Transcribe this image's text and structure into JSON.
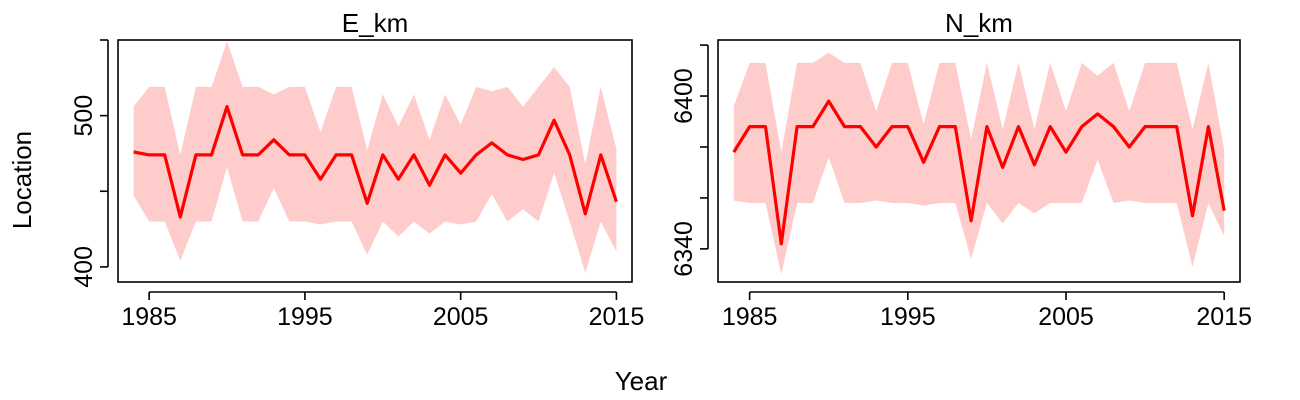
{
  "figure": {
    "xlabel": "Year",
    "ylabel": "Location"
  },
  "chart_data": [
    {
      "type": "line",
      "title": "E_km",
      "xlim": [
        1983,
        2016
      ],
      "ylim": [
        390,
        550
      ],
      "xticks": [
        1985,
        1995,
        2005,
        2015
      ],
      "xtick_labels": [
        "1985",
        "1995",
        "2005",
        "2015"
      ],
      "yticks": [
        400,
        450,
        500,
        550
      ],
      "ytick_labels": [
        "400",
        "",
        "500",
        ""
      ],
      "line_color": "#ff0000",
      "band_color": "#ffcccc",
      "x": [
        1984,
        1985,
        1986,
        1987,
        1988,
        1989,
        1990,
        1991,
        1992,
        1993,
        1994,
        1995,
        1996,
        1997,
        1998,
        1999,
        2000,
        2001,
        2002,
        2003,
        2004,
        2005,
        2006,
        2007,
        2008,
        2009,
        2010,
        2011,
        2012,
        2013,
        2014,
        2015
      ],
      "series": [
        {
          "values": [
            476,
            474,
            474,
            433,
            474,
            474,
            506,
            474,
            474,
            484,
            474,
            474,
            458,
            474,
            474,
            442,
            474,
            458,
            474,
            454,
            474,
            462,
            474,
            482,
            474,
            471,
            474,
            497,
            474,
            435,
            474,
            443
          ],
          "upper": [
            506,
            519,
            519,
            474,
            519,
            519,
            549,
            519,
            519,
            514,
            519,
            519,
            489,
            519,
            519,
            477,
            514,
            493,
            514,
            484,
            514,
            494,
            519,
            516,
            519,
            506,
            519,
            532,
            519,
            468,
            519,
            478
          ],
          "lower": [
            447,
            430,
            430,
            404,
            430,
            430,
            466,
            430,
            430,
            452,
            430,
            430,
            428,
            430,
            430,
            408,
            430,
            420,
            430,
            422,
            430,
            428,
            430,
            448,
            430,
            438,
            430,
            462,
            430,
            396,
            430,
            410
          ]
        }
      ]
    },
    {
      "type": "line",
      "title": "N_km",
      "xlim": [
        1983,
        2016
      ],
      "ylim": [
        6327,
        6422
      ],
      "xticks": [
        1985,
        1995,
        2005,
        2015
      ],
      "xtick_labels": [
        "1985",
        "1995",
        "2005",
        "2015"
      ],
      "yticks": [
        6340,
        6360,
        6380,
        6400,
        6420
      ],
      "ytick_labels": [
        "6340",
        "",
        "",
        "6400",
        ""
      ],
      "line_color": "#ff0000",
      "band_color": "#ffcccc",
      "x": [
        1984,
        1985,
        1986,
        1987,
        1988,
        1989,
        1990,
        1991,
        1992,
        1993,
        1994,
        1995,
        1996,
        1997,
        1998,
        1999,
        2000,
        2001,
        2002,
        2003,
        2004,
        2005,
        2006,
        2007,
        2008,
        2009,
        2010,
        2011,
        2012,
        2013,
        2014,
        2015
      ],
      "series": [
        {
          "values": [
            6378,
            6388,
            6388,
            6342,
            6388,
            6388,
            6398,
            6388,
            6388,
            6380,
            6388,
            6388,
            6374,
            6388,
            6388,
            6351,
            6388,
            6372,
            6388,
            6373,
            6388,
            6378,
            6388,
            6393,
            6388,
            6380,
            6388,
            6388,
            6388,
            6353,
            6388,
            6355
          ],
          "upper": [
            6396,
            6413,
            6413,
            6378,
            6413,
            6413,
            6417,
            6413,
            6413,
            6394,
            6413,
            6413,
            6389,
            6413,
            6413,
            6383,
            6413,
            6387,
            6413,
            6387,
            6413,
            6394,
            6413,
            6408,
            6413,
            6394,
            6413,
            6413,
            6413,
            6387,
            6413,
            6379
          ],
          "lower": [
            6359,
            6358,
            6358,
            6330,
            6358,
            6358,
            6376,
            6358,
            6358,
            6359,
            6358,
            6358,
            6357,
            6358,
            6358,
            6336,
            6358,
            6350,
            6358,
            6354,
            6358,
            6358,
            6358,
            6375,
            6358,
            6359,
            6358,
            6358,
            6358,
            6333,
            6358,
            6345
          ]
        }
      ]
    }
  ]
}
